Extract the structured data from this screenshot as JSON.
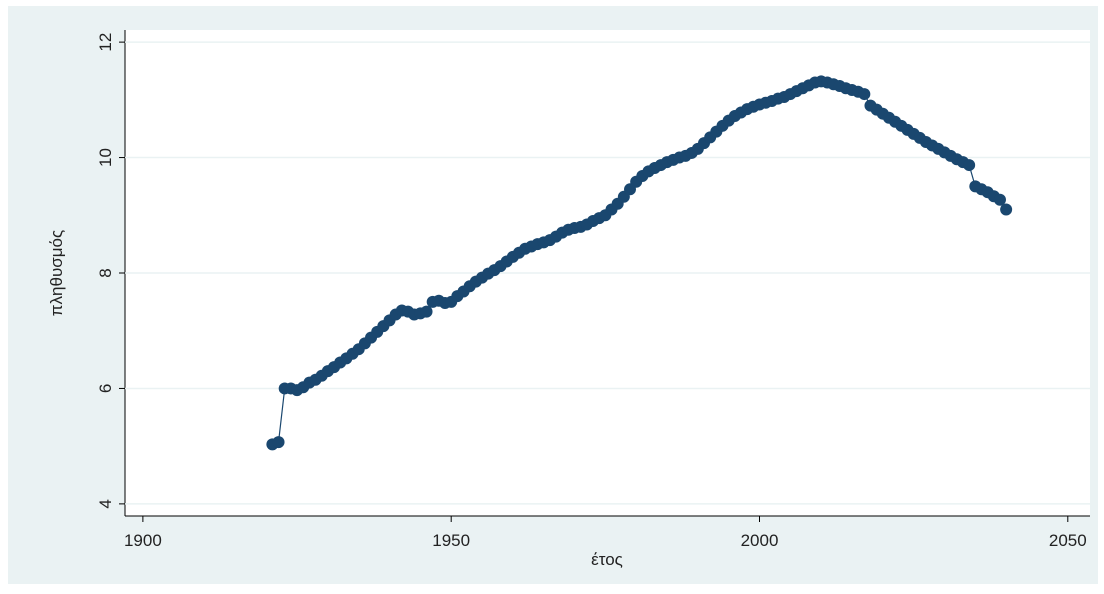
{
  "chart_data": {
    "type": "connected-scatter",
    "xlabel": "έτος",
    "ylabel": "πληθυσμός",
    "x": [
      1921,
      1922,
      1923,
      1924,
      1925,
      1926,
      1927,
      1928,
      1929,
      1930,
      1931,
      1932,
      1933,
      1934,
      1935,
      1936,
      1937,
      1938,
      1939,
      1940,
      1941,
      1942,
      1943,
      1944,
      1945,
      1946,
      1947,
      1948,
      1949,
      1950,
      1951,
      1952,
      1953,
      1954,
      1955,
      1956,
      1957,
      1958,
      1959,
      1960,
      1961,
      1962,
      1963,
      1964,
      1965,
      1966,
      1967,
      1968,
      1969,
      1970,
      1971,
      1972,
      1973,
      1974,
      1975,
      1976,
      1977,
      1978,
      1979,
      1980,
      1981,
      1982,
      1983,
      1984,
      1985,
      1986,
      1987,
      1988,
      1989,
      1990,
      1991,
      1992,
      1993,
      1994,
      1995,
      1996,
      1997,
      1998,
      1999,
      2000,
      2001,
      2002,
      2003,
      2004,
      2005,
      2006,
      2007,
      2008,
      2009,
      2010,
      2011,
      2012,
      2013,
      2014,
      2015,
      2016,
      2017,
      2018,
      2019,
      2020,
      2021,
      2022,
      2023,
      2024,
      2025,
      2026,
      2027,
      2028,
      2029,
      2030,
      2031,
      2032,
      2033,
      2034,
      2035,
      2036,
      2037,
      2038,
      2039,
      2040
    ],
    "series": [
      {
        "color": "#1a476f",
        "values": [
          5.03,
          5.07,
          6.0,
          6.0,
          5.97,
          6.02,
          6.1,
          6.15,
          6.22,
          6.3,
          6.37,
          6.45,
          6.52,
          6.6,
          6.68,
          6.78,
          6.88,
          6.98,
          7.08,
          7.18,
          7.28,
          7.35,
          7.33,
          7.28,
          7.3,
          7.33,
          7.5,
          7.52,
          7.48,
          7.5,
          7.6,
          7.68,
          7.77,
          7.85,
          7.92,
          7.99,
          8.05,
          8.12,
          8.2,
          8.28,
          8.35,
          8.42,
          8.46,
          8.5,
          8.53,
          8.57,
          8.63,
          8.7,
          8.75,
          8.78,
          8.8,
          8.84,
          8.9,
          8.95,
          9.0,
          9.1,
          9.2,
          9.32,
          9.45,
          9.58,
          9.68,
          9.76,
          9.82,
          9.87,
          9.92,
          9.96,
          10.0,
          10.03,
          10.08,
          10.15,
          10.25,
          10.35,
          10.45,
          10.55,
          10.64,
          10.72,
          10.78,
          10.84,
          10.88,
          10.92,
          10.95,
          10.98,
          11.02,
          11.05,
          11.1,
          11.15,
          11.2,
          11.25,
          11.3,
          11.32,
          11.3,
          11.27,
          11.24,
          11.2,
          11.17,
          11.14,
          11.1,
          10.9,
          10.83,
          10.76,
          10.69,
          10.62,
          10.55,
          10.48,
          10.41,
          10.34,
          10.27,
          10.21,
          10.15,
          10.09,
          10.03,
          9.97,
          9.92,
          9.87,
          9.5,
          9.45,
          9.4,
          9.33,
          9.27,
          9.1
        ]
      }
    ],
    "xlim": [
      1897.1,
      2053.6
    ],
    "ylim": [
      3.79,
      12.21
    ],
    "xticks": [
      1900,
      1950,
      2000,
      2050
    ],
    "yticks": [
      4,
      6,
      8,
      10,
      12
    ],
    "grid": true
  }
}
